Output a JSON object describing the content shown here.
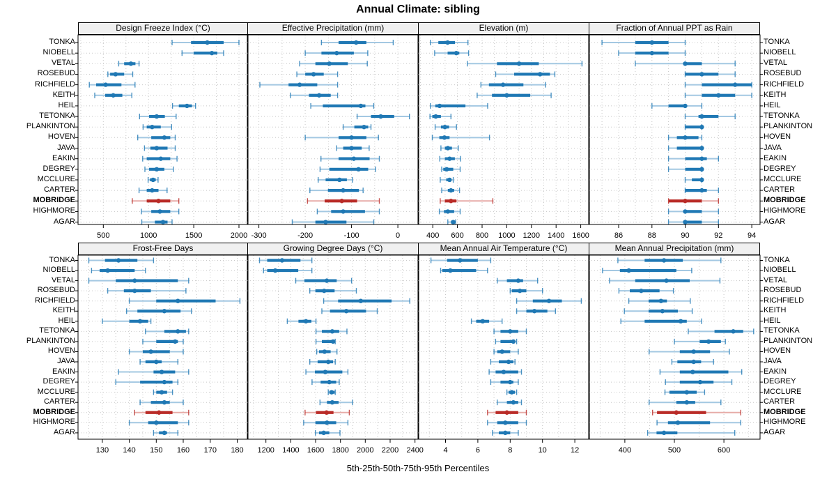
{
  "title": "Annual Climate: sibling",
  "caption": "5th-25th-50th-75th-95th Percentiles",
  "percentiles": [
    "5th",
    "25th",
    "50th",
    "75th",
    "95th"
  ],
  "highlight_station": "MOBRIDGE",
  "stations": [
    "TONKA",
    "NIOBELL",
    "VETAL",
    "ROSEBUD",
    "RICHFIELD",
    "KEITH",
    "HEIL",
    "TETONKA",
    "PLANKINTON",
    "HOVEN",
    "JAVA",
    "EAKIN",
    "DEGREY",
    "MCCLURE",
    "CARTER",
    "MOBRIDGE",
    "HIGHMORE",
    "AGAR"
  ],
  "colors": {
    "normal": "#1F78B4",
    "normal_light": "#A3C8E2",
    "highlight": "#B92B27",
    "highlight_light": "#E7ACA8",
    "grid": "#C8C8C8",
    "border": "#000000",
    "strip_bg": "#F0F0F0",
    "text": "#000000"
  },
  "chart_data": [
    {
      "type": "dotplot",
      "slug": "design-freeze-index",
      "title": "Design Freeze Index (°C)",
      "xlim": [
        220,
        2100
      ],
      "ticks": [
        500,
        1000,
        1500,
        2000
      ],
      "values": [
        [
          1260,
          1470,
          1650,
          1830,
          2000
        ],
        [
          1370,
          1500,
          1700,
          1760,
          1830
        ],
        [
          670,
          730,
          805,
          855,
          895
        ],
        [
          550,
          575,
          635,
          730,
          825
        ],
        [
          345,
          420,
          525,
          700,
          850
        ],
        [
          405,
          520,
          610,
          710,
          815
        ],
        [
          1265,
          1335,
          1425,
          1480,
          1520
        ],
        [
          900,
          1005,
          1090,
          1180,
          1305
        ],
        [
          940,
          980,
          1040,
          1135,
          1255
        ],
        [
          880,
          1030,
          1175,
          1240,
          1295
        ],
        [
          955,
          1020,
          1090,
          1210,
          1295
        ],
        [
          935,
          980,
          1135,
          1240,
          1315
        ],
        [
          960,
          1005,
          1090,
          1175,
          1275
        ],
        [
          995,
          1015,
          1050,
          1080,
          1105
        ],
        [
          895,
          980,
          1040,
          1110,
          1205
        ],
        [
          820,
          980,
          1110,
          1240,
          1335
        ],
        [
          920,
          1030,
          1125,
          1240,
          1335
        ],
        [
          925,
          1070,
          1160,
          1210,
          1260
        ]
      ]
    },
    {
      "type": "dotplot",
      "slug": "effective-precipitation",
      "title": "Effective Precipitation (mm)",
      "xlim": [
        -325,
        45
      ],
      "ticks": [
        -300,
        -200,
        -100,
        0
      ],
      "values": [
        [
          -165,
          -128,
          -90,
          -68,
          -10
        ],
        [
          -200,
          -165,
          -132,
          -95,
          -65
        ],
        [
          -212,
          -178,
          -148,
          -108,
          -66
        ],
        [
          -218,
          -200,
          -182,
          -160,
          -130
        ],
        [
          -298,
          -236,
          -212,
          -174,
          -130
        ],
        [
          -232,
          -192,
          -170,
          -145,
          -130
        ],
        [
          -188,
          -162,
          -80,
          -70,
          -52
        ],
        [
          -88,
          -58,
          -37,
          -8,
          25
        ],
        [
          -118,
          -94,
          -73,
          -64,
          -58
        ],
        [
          -200,
          -128,
          -100,
          -68,
          -42
        ],
        [
          -132,
          -118,
          -100,
          -78,
          -62
        ],
        [
          -166,
          -128,
          -95,
          -61,
          -40
        ],
        [
          -168,
          -148,
          -85,
          -64,
          -48
        ],
        [
          -172,
          -156,
          -126,
          -110,
          -98
        ],
        [
          -190,
          -151,
          -118,
          -84,
          -75
        ],
        [
          -195,
          -158,
          -121,
          -88,
          -40
        ],
        [
          -174,
          -144,
          -118,
          -71,
          -40
        ],
        [
          -228,
          -178,
          -156,
          -111,
          -52
        ]
      ]
    },
    {
      "type": "dotplot",
      "slug": "elevation",
      "title": "Elevation (m)",
      "xlim": [
        280,
        1670
      ],
      "ticks": [
        400,
        600,
        800,
        1000,
        1200,
        1400,
        1600
      ],
      "values": [
        [
          380,
          445,
          520,
          580,
          685
        ],
        [
          415,
          520,
          590,
          615,
          690
        ],
        [
          680,
          920,
          1100,
          1260,
          1610
        ],
        [
          910,
          1060,
          1270,
          1350,
          1390
        ],
        [
          790,
          855,
          970,
          1135,
          1315
        ],
        [
          760,
          880,
          1000,
          1190,
          1360
        ],
        [
          380,
          420,
          455,
          665,
          845
        ],
        [
          377,
          396,
          424,
          466,
          547
        ],
        [
          419,
          466,
          498,
          532,
          592
        ],
        [
          396,
          453,
          494,
          536,
          860
        ],
        [
          466,
          498,
          522,
          555,
          607
        ],
        [
          457,
          498,
          536,
          579,
          626
        ],
        [
          472,
          485,
          513,
          566,
          622
        ],
        [
          460,
          509,
          536,
          551,
          566
        ],
        [
          472,
          522,
          547,
          573,
          617
        ],
        [
          460,
          498,
          547,
          592,
          887
        ],
        [
          453,
          490,
          522,
          573,
          622
        ],
        [
          522,
          547,
          566,
          579,
          585
        ]
      ]
    },
    {
      "type": "dotplot",
      "slug": "fraction-ppt-rain",
      "title": "Fraction of Annual PPT as Rain",
      "xlim": [
        84.2,
        94.5
      ],
      "ticks": [
        86,
        88,
        90,
        92,
        94
      ],
      "values": [
        [
          85,
          87,
          88,
          89,
          90
        ],
        [
          86,
          87,
          88,
          89,
          90
        ],
        [
          87,
          90,
          90,
          91,
          93
        ],
        [
          90,
          90,
          91,
          92,
          93
        ],
        [
          90,
          91,
          93,
          94,
          94
        ],
        [
          90,
          91,
          92,
          93,
          94
        ],
        [
          88,
          89,
          90,
          90,
          91
        ],
        [
          90,
          90.8,
          91,
          92,
          93
        ],
        [
          90,
          90,
          91,
          91,
          91
        ],
        [
          89,
          89.5,
          90,
          90.8,
          91
        ],
        [
          89,
          89.5,
          91,
          91,
          91
        ],
        [
          89,
          90,
          91,
          91.3,
          92
        ],
        [
          89,
          90,
          91,
          91,
          91
        ],
        [
          90,
          90.4,
          91,
          91,
          91
        ],
        [
          90,
          90,
          91,
          91.3,
          92
        ],
        [
          89,
          89,
          90,
          91,
          92
        ],
        [
          89,
          90,
          90,
          91,
          92
        ],
        [
          89,
          90,
          90,
          91,
          92
        ]
      ]
    },
    {
      "type": "dotplot",
      "slug": "frost-free-days",
      "title": "Frost-Free Days",
      "xlim": [
        121,
        184
      ],
      "ticks": [
        130,
        140,
        150,
        160,
        170,
        180
      ],
      "values": [
        [
          125,
          131,
          136,
          143,
          149
        ],
        [
          126,
          129,
          132,
          142,
          146
        ],
        [
          125,
          135,
          142,
          158,
          162
        ],
        [
          132,
          138,
          142,
          148,
          161
        ],
        [
          140,
          150,
          158,
          172,
          181
        ],
        [
          139,
          143,
          153,
          159,
          163
        ],
        [
          130,
          140,
          144,
          147,
          148
        ],
        [
          146,
          153,
          158,
          161,
          162
        ],
        [
          145,
          150,
          157,
          158,
          160
        ],
        [
          140,
          145,
          148,
          155,
          160
        ],
        [
          144,
          146,
          150,
          152,
          158
        ],
        [
          136,
          149,
          152,
          157,
          162
        ],
        [
          135,
          144,
          153,
          156,
          158
        ],
        [
          149,
          150,
          152,
          154,
          156
        ],
        [
          144,
          148,
          153,
          155,
          160
        ],
        [
          142,
          146,
          151,
          156,
          162
        ],
        [
          140,
          147,
          150,
          158,
          162
        ],
        [
          149,
          151,
          153,
          154,
          158
        ]
      ]
    },
    {
      "type": "dotplot",
      "slug": "growing-degree-days",
      "title": "Growing Degree Days (°C)",
      "xlim": [
        1050,
        2430
      ],
      "ticks": [
        1200,
        1400,
        1600,
        1800,
        2000,
        2200,
        2400
      ],
      "values": [
        [
          1148,
          1210,
          1330,
          1478,
          1570
        ],
        [
          1180,
          1210,
          1275,
          1460,
          1570
        ],
        [
          1440,
          1510,
          1690,
          1770,
          1890
        ],
        [
          1553,
          1598,
          1669,
          1753,
          1928
        ],
        [
          1665,
          1781,
          1963,
          2212,
          2358
        ],
        [
          1650,
          1716,
          1847,
          2006,
          2096
        ],
        [
          1372,
          1462,
          1522,
          1566,
          1603
        ],
        [
          1603,
          1650,
          1734,
          1790,
          1852
        ],
        [
          1603,
          1650,
          1740,
          1753,
          1758
        ],
        [
          1609,
          1628,
          1672,
          1721,
          1772
        ],
        [
          1553,
          1616,
          1702,
          1740,
          1758
        ],
        [
          1522,
          1594,
          1678,
          1815,
          1860
        ],
        [
          1571,
          1640,
          1710,
          1766,
          1790
        ],
        [
          1702,
          1710,
          1729,
          1753,
          1758
        ],
        [
          1635,
          1691,
          1734,
          1785,
          1898
        ],
        [
          1515,
          1603,
          1688,
          1744,
          1871
        ],
        [
          1504,
          1598,
          1691,
          1766,
          1860
        ],
        [
          1598,
          1628,
          1665,
          1710,
          1796
        ]
      ]
    },
    {
      "type": "dotplot",
      "slug": "mean-annual-air-temperature",
      "title": "Mean Annual Air Temperature (°C)",
      "xlim": [
        2.3,
        12.9
      ],
      "ticks": [
        4,
        6,
        8,
        10,
        12
      ],
      "values": [
        [
          3.1,
          4.1,
          4.9,
          6.0,
          6.8
        ],
        [
          3.7,
          3.8,
          4.3,
          5.9,
          6.6
        ],
        [
          7.2,
          7.8,
          8.5,
          8.8,
          9.7
        ],
        [
          8.0,
          8.1,
          8.6,
          9.0,
          10.0
        ],
        [
          8.4,
          9.4,
          10.4,
          11.2,
          12.4
        ],
        [
          8.4,
          9.0,
          9.5,
          10.3,
          10.8
        ],
        [
          5.6,
          5.9,
          6.3,
          6.7,
          7.5
        ],
        [
          7.0,
          7.4,
          8.0,
          8.5,
          9.0
        ],
        [
          7.1,
          7.4,
          8.2,
          8.3,
          8.4
        ],
        [
          7.0,
          7.2,
          7.5,
          8.0,
          8.5
        ],
        [
          6.8,
          7.3,
          7.9,
          8.2,
          8.3
        ],
        [
          6.7,
          7.1,
          7.6,
          8.5,
          8.7
        ],
        [
          6.8,
          7.4,
          8.0,
          8.2,
          8.5
        ],
        [
          7.8,
          7.9,
          8.1,
          8.3,
          8.4
        ],
        [
          7.2,
          7.8,
          8.2,
          8.5,
          8.7
        ],
        [
          6.6,
          7.1,
          7.8,
          8.5,
          9.0
        ],
        [
          6.6,
          7.2,
          7.7,
          8.5,
          9.0
        ],
        [
          6.9,
          7.3,
          7.7,
          8.0,
          8.5
        ]
      ]
    },
    {
      "type": "dotplot",
      "slug": "mean-annual-precipitation",
      "title": "Mean Annual Precipitation (mm)",
      "xlim": [
        327,
        673
      ],
      "ticks": [
        400,
        500,
        600
      ],
      "values": [
        [
          386,
          440,
          479,
          517,
          594
        ],
        [
          355,
          390,
          408,
          504,
          535
        ],
        [
          369,
          421,
          484,
          531,
          592
        ],
        [
          388,
          410,
          433,
          470,
          498
        ],
        [
          408,
          448,
          473,
          485,
          532
        ],
        [
          399,
          448,
          476,
          507,
          536
        ],
        [
          392,
          440,
          513,
          525,
          555
        ],
        [
          528,
          581,
          619,
          639,
          660
        ],
        [
          500,
          551,
          569,
          594,
          603
        ],
        [
          449,
          511,
          539,
          572,
          611
        ],
        [
          495,
          506,
          539,
          554,
          579
        ],
        [
          471,
          511,
          537,
          609,
          636
        ],
        [
          482,
          511,
          552,
          579,
          616
        ],
        [
          481,
          490,
          525,
          545,
          561
        ],
        [
          449,
          504,
          525,
          542,
          594
        ],
        [
          456,
          465,
          504,
          564,
          634
        ],
        [
          465,
          487,
          507,
          572,
          634
        ],
        [
          446,
          464,
          479,
          506,
          622
        ]
      ]
    }
  ]
}
